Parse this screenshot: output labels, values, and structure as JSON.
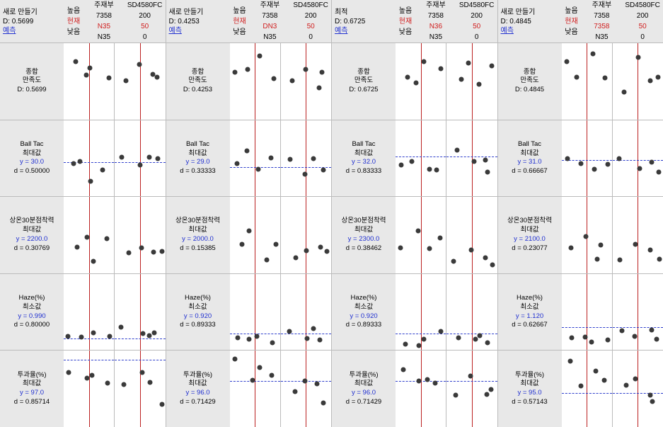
{
  "colors": {
    "background": "#e8e8e8",
    "panel_bg": "#ffffff",
    "border": "#bbbbbb",
    "text": "#000000",
    "red": "#d02020",
    "blue": "#2030d0",
    "vline": "#bb2020",
    "hline": "#3040cc",
    "dot": "#3a3a3a"
  },
  "level_labels": {
    "high": "높음",
    "cur": "현재",
    "low": "낮음"
  },
  "predict_label": "예측",
  "variables": [
    {
      "name": "주재부",
      "high": "7358",
      "low": "N35"
    },
    {
      "name": "SD4580FC",
      "high": "200",
      "low": "0"
    }
  ],
  "panels": [
    {
      "title": "새로 만들기",
      "D": "0.5699",
      "var_cur": [
        "N35",
        "50"
      ],
      "rows": [
        {
          "labels": [
            "종합",
            "만족도",
            "D: 0.5699"
          ],
          "y_blue": false,
          "hline": null
        },
        {
          "labels": [
            "Ball Tac",
            "최대값",
            "y = 30.0",
            "d = 0.50000"
          ],
          "y_idx": 2,
          "hline": 55
        },
        {
          "labels": [
            "상온30분점착력",
            "최대값",
            "y = 2200.0",
            "d = 0.30769"
          ],
          "y_idx": 2,
          "hline": null
        },
        {
          "labels": [
            "Haze(%)",
            "최소값",
            "y = 0.990",
            "d = 0.80000"
          ],
          "y_idx": 2,
          "hline": 85
        },
        {
          "labels": [
            "투과율(%)",
            "최대값",
            "y = 97.0",
            "d = 0.85714"
          ],
          "y_idx": 2,
          "hline": 12
        }
      ]
    },
    {
      "title": "새로 만들기",
      "D": "0.4253",
      "var_cur": [
        "DN3",
        "50"
      ],
      "rows": [
        {
          "labels": [
            "종합",
            "만족도",
            "D: 0.4253"
          ],
          "hline": null
        },
        {
          "labels": [
            "Ball Tac",
            "최대값",
            "y = 29.0",
            "d = 0.33333"
          ],
          "y_idx": 2,
          "hline": 62
        },
        {
          "labels": [
            "상온30분점착력",
            "최대값",
            "y = 2000.0",
            "d = 0.15385"
          ],
          "y_idx": 2,
          "hline": null
        },
        {
          "labels": [
            "Haze(%)",
            "최소값",
            "y = 0.920",
            "d = 0.89333"
          ],
          "y_idx": 2,
          "hline": 78
        },
        {
          "labels": [
            "투과율(%)",
            "최대값",
            "y = 96.0",
            "d = 0.71429"
          ],
          "y_idx": 2,
          "hline": 40
        }
      ]
    },
    {
      "title": "최적",
      "D": "0.6725",
      "var_cur": [
        "N36",
        "50"
      ],
      "rows": [
        {
          "labels": [
            "종합",
            "만족도",
            "D: 0.6725"
          ],
          "hline": null
        },
        {
          "labels": [
            "Ball Tac",
            "최대값",
            "y = 32.0",
            "d = 0.83333"
          ],
          "y_idx": 2,
          "hline": 48
        },
        {
          "labels": [
            "상온30분점착력",
            "최대값",
            "y = 2300.0",
            "d = 0.38462"
          ],
          "y_idx": 2,
          "hline": null
        },
        {
          "labels": [
            "Haze(%)",
            "최소값",
            "y = 0.920",
            "d = 0.89333"
          ],
          "y_idx": 2,
          "hline": 78
        },
        {
          "labels": [
            "투과율(%)",
            "최대값",
            "y = 96.0",
            "d = 0.71429"
          ],
          "y_idx": 2,
          "hline": 40
        }
      ]
    },
    {
      "title": "새로 만들기",
      "D": "0.4845",
      "var_cur": [
        "7358",
        "50"
      ],
      "rows": [
        {
          "labels": [
            "종합",
            "만족도",
            "D: 0.4845"
          ],
          "hline": null
        },
        {
          "labels": [
            "Ball Tac",
            "최대값",
            "y = 31.0",
            "d = 0.66667"
          ],
          "y_idx": 2,
          "hline": 52
        },
        {
          "labels": [
            "상온30분점착력",
            "최대값",
            "y = 2100.0",
            "d = 0.23077"
          ],
          "y_idx": 2,
          "hline": null
        },
        {
          "labels": [
            "Haze(%)",
            "최소값",
            "y = 1.120",
            "d = 0.62667"
          ],
          "y_idx": 2,
          "hline": 70
        },
        {
          "labels": [
            "투과율(%)",
            "최대값",
            "y = 95.0",
            "d = 0.57143"
          ],
          "y_idx": 2,
          "hline": 55
        }
      ]
    }
  ],
  "dots_base": {
    "row0": [
      [
        [
          18,
          35
        ],
        [
          38,
          45
        ],
        [
          60,
          22
        ],
        [
          82,
          40
        ]
      ],
      [
        [
          22,
          55
        ],
        [
          45,
          28
        ],
        [
          68,
          50
        ],
        [
          85,
          35
        ]
      ]
    ],
    "row1": [
      [
        [
          15,
          60
        ],
        [
          40,
          48
        ],
        [
          62,
          70
        ],
        [
          85,
          55
        ]
      ],
      [
        [
          20,
          50
        ],
        [
          48,
          62
        ],
        [
          70,
          45
        ],
        [
          88,
          58
        ]
      ]
    ],
    "row2": [
      [
        [
          18,
          70
        ],
        [
          42,
          55
        ],
        [
          65,
          78
        ],
        [
          84,
          62
        ]
      ],
      [
        [
          22,
          75
        ],
        [
          50,
          60
        ],
        [
          72,
          72
        ],
        [
          88,
          80
        ]
      ]
    ],
    "row3": [
      [
        [
          16,
          82
        ],
        [
          40,
          88
        ],
        [
          62,
          80
        ],
        [
          85,
          86
        ]
      ],
      [
        [
          20,
          78
        ],
        [
          48,
          84
        ],
        [
          70,
          80
        ],
        [
          86,
          82
        ]
      ]
    ],
    "row4": [
      [
        [
          18,
          18
        ],
        [
          42,
          38
        ],
        [
          64,
          30
        ],
        [
          84,
          42
        ]
      ],
      [
        [
          22,
          48
        ],
        [
          50,
          35
        ],
        [
          72,
          52
        ],
        [
          88,
          60
        ]
      ]
    ]
  }
}
